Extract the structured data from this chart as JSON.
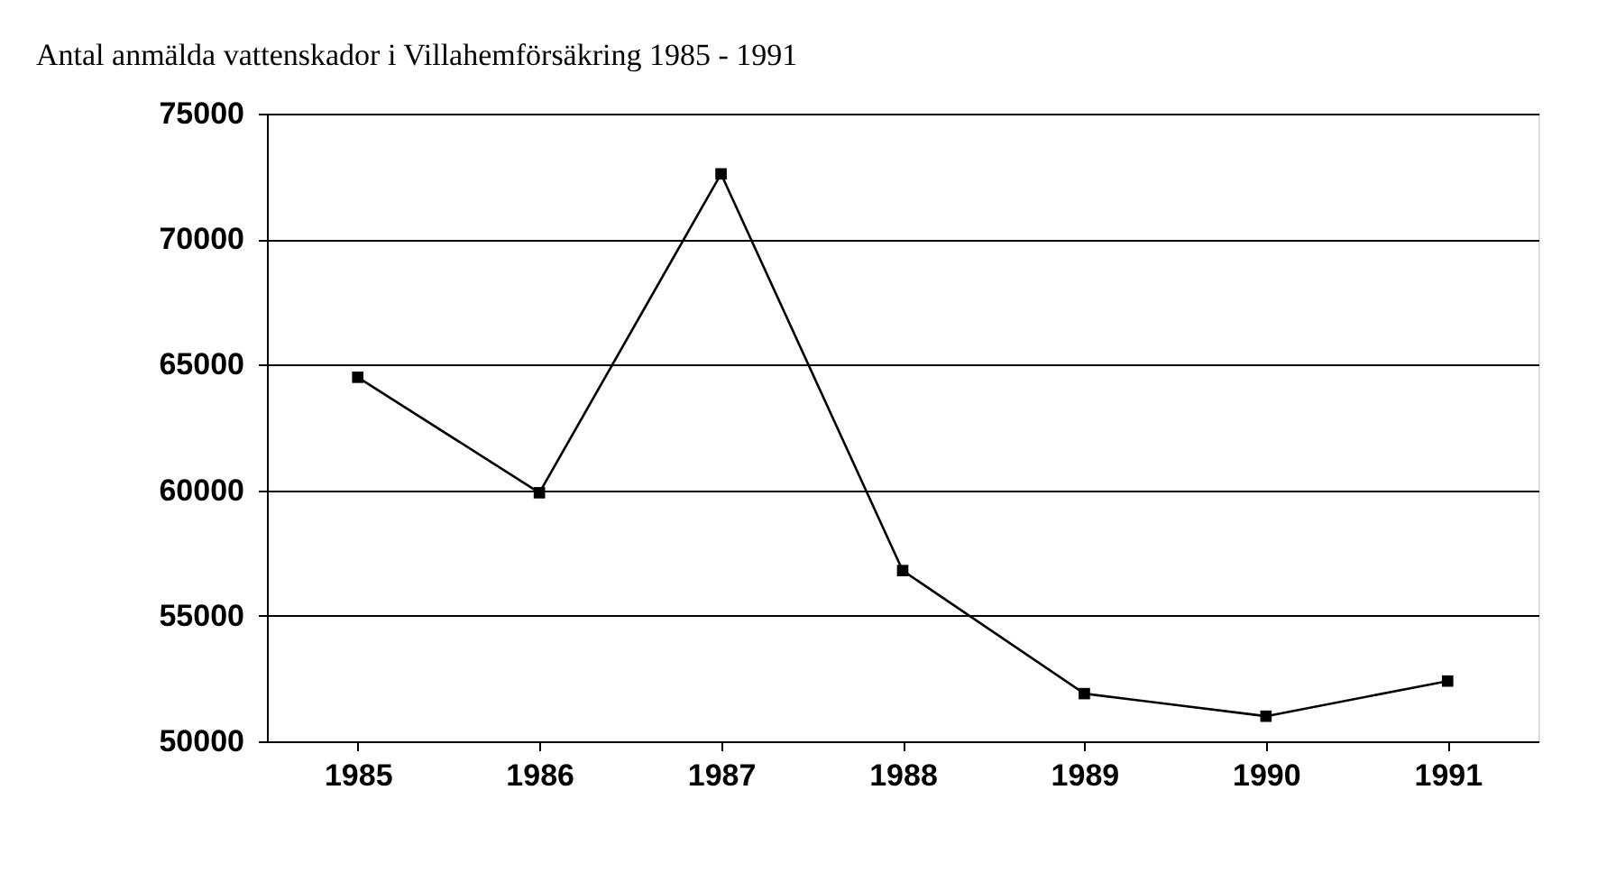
{
  "chart_data": {
    "type": "line",
    "title": "Antal anmälda vattenskador i Villahemförsäkring 1985 - 1991",
    "categories": [
      "1985",
      "1986",
      "1987",
      "1988",
      "1989",
      "1990",
      "1991"
    ],
    "series": [
      {
        "color": "#000000",
        "values": [
          64500,
          59900,
          72600,
          56800,
          51900,
          51000,
          52400
        ]
      }
    ],
    "ylim": [
      50000,
      75000
    ],
    "yticks": [
      50000,
      55000,
      60000,
      65000,
      70000,
      75000
    ],
    "grid": "y",
    "marker": "square",
    "line_style": "solid",
    "legend": false
  }
}
